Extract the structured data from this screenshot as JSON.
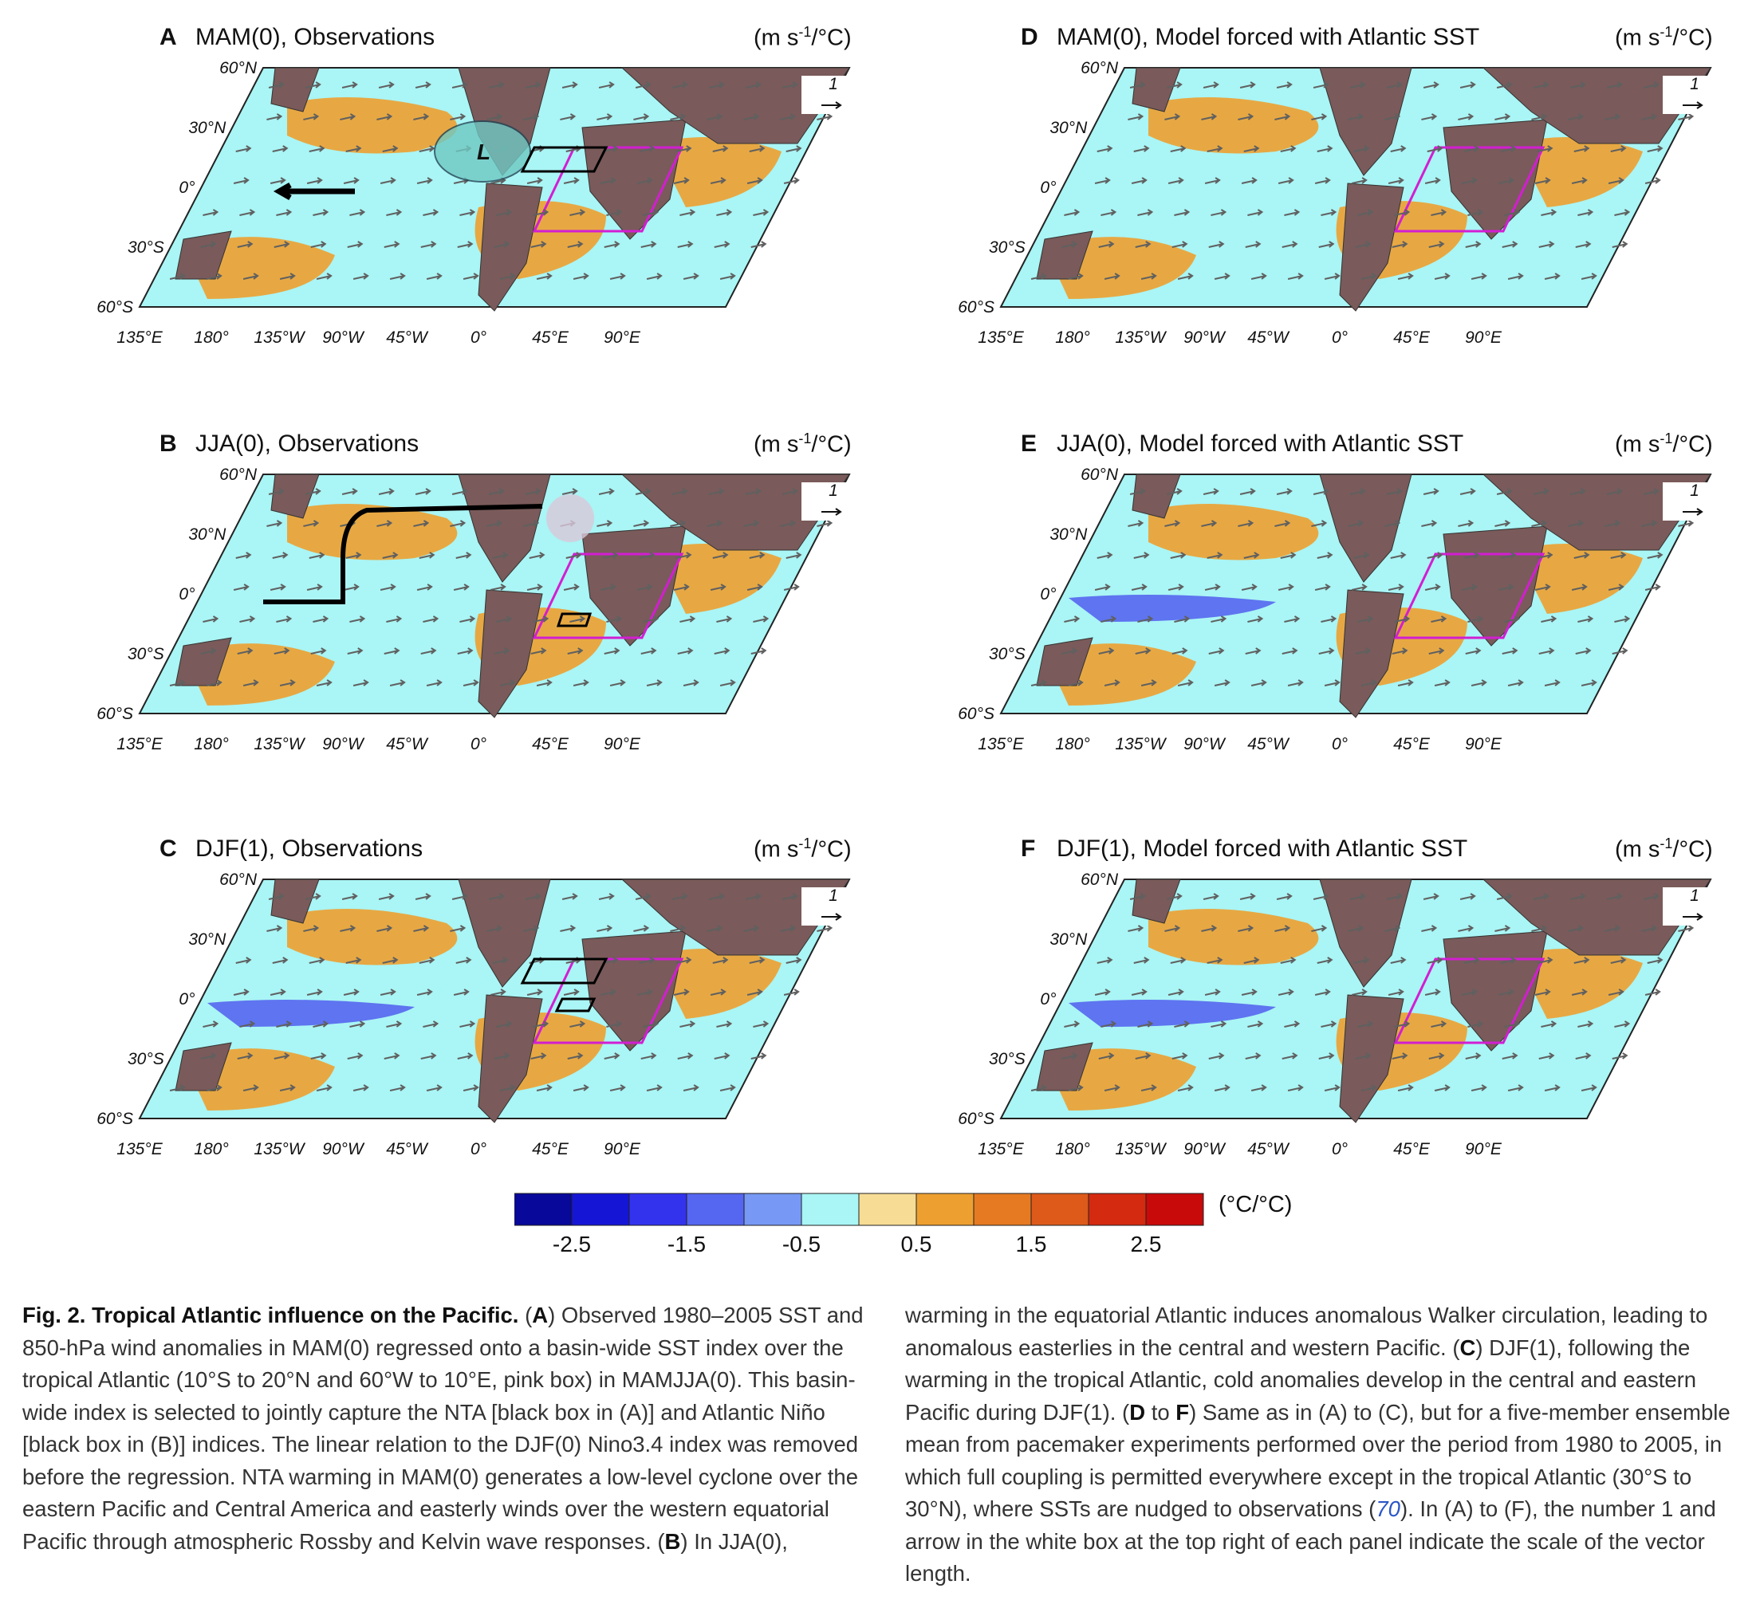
{
  "panels": [
    {
      "letter": "A",
      "title": "MAM(0), Observations",
      "units_pre": "(m s",
      "units_sup": "-1",
      "units_post": "/°C)",
      "scale_label": "1"
    },
    {
      "letter": "B",
      "title": "JJA(0), Observations",
      "units_pre": "(m s",
      "units_sup": "-1",
      "units_post": "/°C)",
      "scale_label": "1"
    },
    {
      "letter": "C",
      "title": "DJF(1), Observations",
      "units_pre": "(m s",
      "units_sup": "-1",
      "units_post": "/°C)",
      "scale_label": "1"
    },
    {
      "letter": "D",
      "title": "MAM(0), Model forced with Atlantic SST",
      "units_pre": "(m s",
      "units_sup": "-1",
      "units_post": "/°C)",
      "scale_label": "1"
    },
    {
      "letter": "E",
      "title": "JJA(0), Model forced with Atlantic SST",
      "units_pre": "(m s",
      "units_sup": "-1",
      "units_post": "/°C)",
      "scale_label": "1"
    },
    {
      "letter": "F",
      "title": "DJF(1), Model forced with Atlantic SST",
      "units_pre": "(m s",
      "units_sup": "-1",
      "units_post": "/°C)",
      "scale_label": "1"
    }
  ],
  "axes": {
    "lat_labels": [
      "60°N",
      "30°N",
      "0°",
      "30°S",
      "60°S"
    ],
    "lon_labels": [
      "135°E",
      "180°",
      "135°W",
      "90°W",
      "45°W",
      "0°",
      "45°E",
      "90°E"
    ]
  },
  "annotations": {
    "cyclone_label": "L"
  },
  "colorbar": {
    "unit": "(°C/°C)",
    "ticks": [
      "-2.5",
      "-1.5",
      "-0.5",
      "0.5",
      "1.5",
      "2.5"
    ],
    "colors": [
      "#08089a",
      "#1515d6",
      "#3333ee",
      "#5566f0",
      "#7799f5",
      "#aaf5f5",
      "#f7dc96",
      "#eda030",
      "#e57a22",
      "#dd5a1a",
      "#d42a10",
      "#c80a0a"
    ]
  },
  "colors": {
    "land": "#7a5a5a",
    "ocean_neutral": "#aaf5f5",
    "warm": "#eda030",
    "cool": "#5566f0",
    "pink_box": "#d21ed2",
    "wind_vector": "#606060"
  },
  "caption": {
    "left": {
      "fig_label": "Fig. 2. Tropical Atlantic influence on the Pacific.",
      "p1": " (",
      "b1": "A",
      "p2": ") Observed 1980–2005 SST and 850-hPa wind anomalies in MAM(0) regressed onto a basin-wide SST index over the tropical Atlantic (10°S to 20°N and 60°W to 10°E, pink box) in MAMJJA(0). This basin-wide index is selected to jointly capture the NTA [black box in (A)] and Atlantic Niño [black box in (B)] indices. The linear relation to the DJF(0) Nino3.4 index was removed before the regression. NTA warming in MAM(0) generates a low-level cyclone over the eastern Pacific and Central America and easterly winds over the western equatorial Pacific through atmospheric Rossby and Kelvin wave responses. (",
      "b2": "B",
      "p3": ") In JJA(0),"
    },
    "right": {
      "p1": "warming in the equatorial Atlantic induces anomalous Walker circulation, leading to anomalous easterlies in the central and western Pacific. (",
      "b1": "C",
      "p2": ") DJF(1), following the warming in the tropical Atlantic, cold anomalies develop in the central and eastern Pacific during DJF(1). (",
      "b2": "D",
      "p3": " to ",
      "b3": "F",
      "p4": ") Same as in (A) to (C), but for a five-member ensemble mean from pacemaker experiments performed over the period from 1980 to 2005, in which full coupling is permitted everywhere except in the tropical Atlantic (30°S to 30°N), where SSTs are nudged to observations (",
      "ref": "70",
      "p5": "). In (A) to (F), the number 1 and arrow in the white box at the top right of each panel indicate the scale of the vector length."
    }
  }
}
